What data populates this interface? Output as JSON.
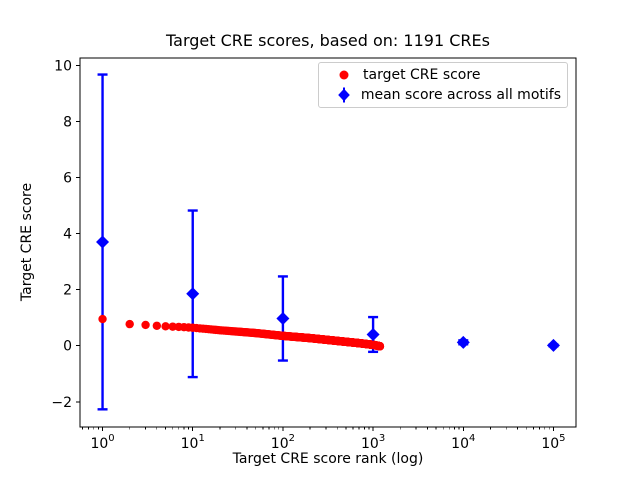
{
  "figure": {
    "title": "Target CRE scores, based on: 1191 CREs"
  },
  "colors": {
    "target_series": "#ff0000",
    "mean_series": "#0000ff",
    "axis": "#000000",
    "text": "#000000",
    "legend_border": "#cccccc",
    "background": "#ffffff"
  },
  "legend": {
    "entries": [
      {
        "label": "target CRE score",
        "marker": "red-circle"
      },
      {
        "label": "mean score across all motifs",
        "marker": "blue-diamond-errorbar"
      }
    ]
  },
  "chart_data": {
    "type": "scatter",
    "title": "Target CRE scores, based on: 1191 CREs",
    "xlabel": "Target CRE score rank (log)",
    "ylabel": "Target CRE score",
    "x_scale": "log10",
    "xlim_log10": [
      -0.25,
      5.25
    ],
    "ylim": [
      -2.9,
      10.26
    ],
    "x_major_ticks": [
      1,
      10,
      100,
      1000,
      10000,
      100000
    ],
    "x_tick_label_base": "10",
    "x_tick_exponents": [
      0,
      1,
      2,
      3,
      4,
      5
    ],
    "y_ticks": [
      10,
      8,
      6,
      4,
      2,
      0,
      -2
    ],
    "grid": false,
    "legend_position": "upper right inside plot",
    "series": [
      {
        "name": "target CRE score",
        "type": "scatter",
        "marker": "circle",
        "color": "#ff0000",
        "n_points": 1191,
        "x_ranks": "integers 1 to 1191",
        "anchor_points": [
          [
            1,
            0.95
          ],
          [
            2,
            0.77
          ],
          [
            3,
            0.74
          ],
          [
            4,
            0.71
          ],
          [
            5,
            0.69
          ],
          [
            7,
            0.67
          ],
          [
            10,
            0.64
          ],
          [
            20,
            0.55
          ],
          [
            50,
            0.45
          ],
          [
            100,
            0.35
          ],
          [
            200,
            0.27
          ],
          [
            400,
            0.17
          ],
          [
            700,
            0.09
          ],
          [
            1000,
            0.03
          ],
          [
            1191,
            -0.02
          ]
        ]
      },
      {
        "name": "mean score across all motifs",
        "type": "errorbar",
        "marker": "diamond",
        "color": "#0000ff",
        "x": [
          1,
          10,
          100,
          1000,
          10000,
          100000
        ],
        "y": [
          3.7,
          1.85,
          0.97,
          0.4,
          0.12,
          0.01
        ],
        "yerr": [
          5.97,
          2.97,
          1.5,
          0.62,
          0.07,
          0.03
        ]
      }
    ]
  }
}
